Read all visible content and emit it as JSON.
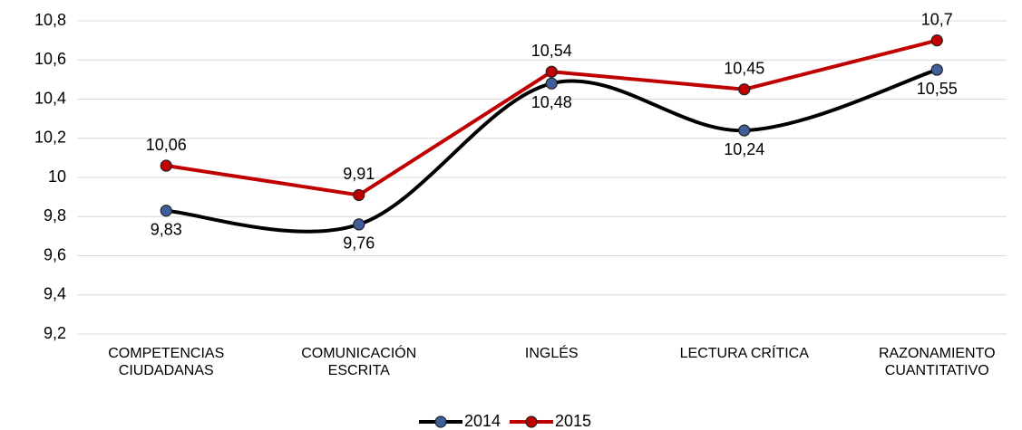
{
  "chart_data": {
    "type": "line",
    "categories": [
      "COMPETENCIAS CIUDADANAS",
      "COMUNICACIÓN ESCRITA",
      "INGLÉS",
      "LECTURA CRÍTICA",
      "RAZONAMIENTO CUANTITATIVO"
    ],
    "series": [
      {
        "name": "2014",
        "color": "#000000",
        "marker_color": "#3f5f9c",
        "smooth": true,
        "values": [
          9.83,
          9.76,
          10.48,
          10.24,
          10.55
        ],
        "value_labels": [
          "9,83",
          "9,76",
          "10,48",
          "10,24",
          "10,55"
        ]
      },
      {
        "name": "2015",
        "color": "#c00000",
        "marker_color": "#c00000",
        "smooth": false,
        "values": [
          10.06,
          9.91,
          10.54,
          10.45,
          10.7
        ],
        "value_labels": [
          "10,06",
          "9,91",
          "10,54",
          "10,45",
          "10,7"
        ]
      }
    ],
    "ylim": [
      9.2,
      10.8
    ],
    "yticks": [
      {
        "value": 9.2,
        "label": "9,2"
      },
      {
        "value": 9.4,
        "label": "9,4"
      },
      {
        "value": 9.6,
        "label": "9,6"
      },
      {
        "value": 9.8,
        "label": "9,8"
      },
      10,
      {
        "value": 10.2,
        "label": "10,2"
      },
      {
        "value": 10.4,
        "label": "10,4"
      },
      {
        "value": 10.6,
        "label": "10,6"
      },
      {
        "value": 10.8,
        "label": "10,8"
      }
    ],
    "grid": true,
    "legend": "bottom"
  }
}
